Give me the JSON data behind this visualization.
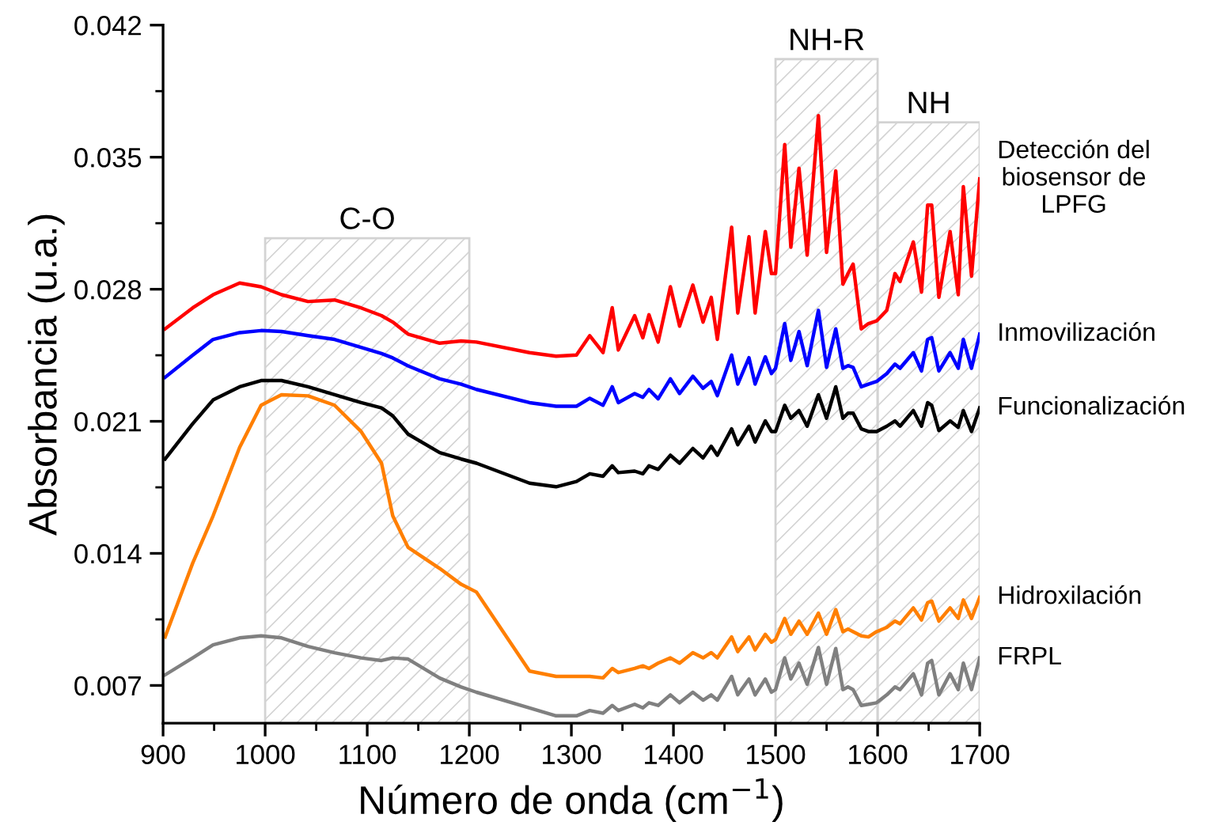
{
  "chart_data": {
    "type": "line",
    "xlabel": "Número de onda (cm$^{−1}$)",
    "ylabel": "Absorbancia (u.a.)",
    "xlim": [
      900,
      1700
    ],
    "xticks": [
      900,
      1000,
      1100,
      1200,
      1300,
      1400,
      1500,
      1600,
      1700
    ],
    "ylim": [
      0.005,
      0.042
    ],
    "yticks": [
      0.007,
      0.014,
      0.021,
      0.028,
      0.035,
      0.042
    ],
    "grid": false,
    "legend": false,
    "marker": "none",
    "line_style": "solid",
    "x": [
      902,
      929,
      949,
      975,
      996,
      1016,
      1042,
      1068,
      1094,
      1114,
      1125,
      1140,
      1171,
      1192,
      1207,
      1259,
      1285,
      1305,
      1318,
      1331,
      1340,
      1346,
      1362,
      1370,
      1376,
      1385,
      1397,
      1406,
      1419,
      1429,
      1437,
      1443,
      1457,
      1463,
      1474,
      1480,
      1490,
      1496,
      1500,
      1509,
      1515,
      1523,
      1531,
      1542,
      1550,
      1559,
      1566,
      1571,
      1576,
      1584,
      1591,
      1599,
      1609,
      1617,
      1622,
      1635,
      1643,
      1649,
      1653,
      1660,
      1671,
      1679,
      1684,
      1692,
      1700
    ],
    "series": [
      {
        "name": "Detección del\nbiosensor de\nLPFG",
        "color": "#ff0000",
        "values": [
          0.0259,
          0.02701,
          0.02771,
          0.02833,
          0.02813,
          0.02771,
          0.02735,
          0.02743,
          0.02701,
          0.0266,
          0.02626,
          0.02562,
          0.02514,
          0.02526,
          0.0252,
          0.02464,
          0.02445,
          0.02451,
          0.02554,
          0.02464,
          0.02702,
          0.02478,
          0.0266,
          0.02543,
          0.02665,
          0.0252,
          0.02813,
          0.02604,
          0.02822,
          0.02626,
          0.02757,
          0.02534,
          0.03129,
          0.02674,
          0.03078,
          0.02674,
          0.03106,
          0.02883,
          0.02883,
          0.03567,
          0.03023,
          0.03441,
          0.02981,
          0.0372,
          0.02995,
          0.03427,
          0.02827,
          0.02883,
          0.02933,
          0.0259,
          0.02618,
          0.02632,
          0.02688,
          0.02883,
          0.02841,
          0.03051,
          0.02785,
          0.03246,
          0.03246,
          0.02757,
          0.03106,
          0.02771,
          0.03344,
          0.02869,
          0.03385
        ]
      },
      {
        "name": "Inmovilización",
        "color": "#0000ff",
        "values": [
          0.02333,
          0.0245,
          0.02534,
          0.0257,
          0.02581,
          0.02576,
          0.02554,
          0.02534,
          0.02492,
          0.02459,
          0.02436,
          0.02394,
          0.02325,
          0.02297,
          0.02269,
          0.02199,
          0.0218,
          0.0218,
          0.02222,
          0.02185,
          0.02283,
          0.02199,
          0.02247,
          0.02227,
          0.02269,
          0.02219,
          0.02325,
          0.02247,
          0.02339,
          0.02275,
          0.02311,
          0.02236,
          0.02451,
          0.02297,
          0.02437,
          0.02297,
          0.02442,
          0.02353,
          0.02381,
          0.02618,
          0.02423,
          0.02576,
          0.02395,
          0.02688,
          0.02386,
          0.0259,
          0.02381,
          0.02395,
          0.02386,
          0.02283,
          0.02297,
          0.02311,
          0.02353,
          0.02403,
          0.02381,
          0.02464,
          0.02367,
          0.02534,
          0.02543,
          0.02367,
          0.02464,
          0.02381,
          0.02534,
          0.02381,
          0.02562
        ]
      },
      {
        "name": "Funcionalización",
        "color": "#000000",
        "values": [
          0.019,
          0.02087,
          0.02213,
          0.02283,
          0.02316,
          0.02316,
          0.02283,
          0.02241,
          0.02199,
          0.02171,
          0.02129,
          0.02032,
          0.01934,
          0.019,
          0.01878,
          0.01772,
          0.01753,
          0.01781,
          0.01822,
          0.01809,
          0.01864,
          0.01828,
          0.01836,
          0.01822,
          0.01864,
          0.01845,
          0.0192,
          0.01878,
          0.01956,
          0.01906,
          0.01968,
          0.0192,
          0.0206,
          0.01976,
          0.02074,
          0.0199,
          0.02102,
          0.02046,
          0.02046,
          0.02185,
          0.02116,
          0.02157,
          0.02074,
          0.02241,
          0.02116,
          0.02283,
          0.02116,
          0.02143,
          0.02143,
          0.0206,
          0.02046,
          0.02046,
          0.02074,
          0.02102,
          0.02074,
          0.02157,
          0.02074,
          0.02199,
          0.02185,
          0.02051,
          0.02102,
          0.02068,
          0.02157,
          0.02046,
          0.02171
        ]
      },
      {
        "name": "Hidroxilación",
        "color": "#ff7f00",
        "values": [
          0.00957,
          0.01348,
          0.01599,
          0.01962,
          0.02185,
          0.02241,
          0.02235,
          0.02185,
          0.02046,
          0.01878,
          0.01599,
          0.01432,
          0.0132,
          0.01236,
          0.01195,
          0.00776,
          0.00748,
          0.00748,
          0.00748,
          0.0074,
          0.0079,
          0.00768,
          0.0079,
          0.00804,
          0.0079,
          0.00818,
          0.00846,
          0.00818,
          0.00874,
          0.00846,
          0.00874,
          0.00846,
          0.00957,
          0.00879,
          0.00957,
          0.00888,
          0.00971,
          0.00929,
          0.00943,
          0.01055,
          0.00971,
          0.01041,
          0.00971,
          0.01083,
          0.00971,
          0.01102,
          0.00985,
          0.00999,
          0.00985,
          0.00963,
          0.00957,
          0.00985,
          0.01008,
          0.01041,
          0.01027,
          0.01111,
          0.01047,
          0.01139,
          0.01147,
          0.01041,
          0.01111,
          0.01055,
          0.01153,
          0.01055,
          0.01167
        ]
      },
      {
        "name": "FRPL",
        "color": "#808080",
        "values": [
          0.00756,
          0.00846,
          0.00915,
          0.00952,
          0.00963,
          0.00952,
          0.00907,
          0.00873,
          0.00846,
          0.00832,
          0.00846,
          0.0084,
          0.00739,
          0.00692,
          0.00664,
          0.00581,
          0.00539,
          0.00539,
          0.00567,
          0.00553,
          0.00594,
          0.00567,
          0.006,
          0.00581,
          0.00608,
          0.00594,
          0.0065,
          0.00608,
          0.00664,
          0.00622,
          0.0065,
          0.00622,
          0.00748,
          0.0065,
          0.00734,
          0.0065,
          0.00734,
          0.00664,
          0.00678,
          0.00846,
          0.00734,
          0.00818,
          0.00706,
          0.00901,
          0.00706,
          0.00896,
          0.00678,
          0.00692,
          0.00678,
          0.00594,
          0.006,
          0.00608,
          0.0065,
          0.00692,
          0.00678,
          0.00762,
          0.0065,
          0.00818,
          0.00832,
          0.0065,
          0.00762,
          0.00678,
          0.00818,
          0.00678,
          0.00846
        ]
      }
    ],
    "bands": [
      {
        "axis": "x",
        "from": 1000,
        "to": 1200,
        "label": "C-O",
        "color": "#d3d3d3"
      },
      {
        "axis": "x",
        "from": 1500,
        "to": 1600,
        "label": "NH-R",
        "color": "#d3d3d3"
      },
      {
        "axis": "x",
        "from": 1600,
        "to": 1700,
        "label": "NH",
        "color": "#d3d3d3"
      }
    ]
  }
}
